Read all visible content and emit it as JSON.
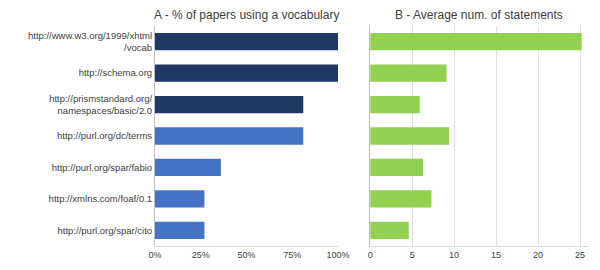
{
  "chart_data": [
    {
      "type": "bar",
      "orientation": "horizontal",
      "title": "A - % of papers using a vocabulary",
      "categories": [
        "http://www.w3.org/1999/xhtml\n/vocab",
        "http://schema.org",
        "http://prismstandard.org/\nnamespaces/basic/2.0",
        "http://purl.org/dc/terms",
        "http://purl.org/spar/fabio",
        "http://xmlns.com/foaf/0.1",
        "http://purl.org/spar/cito"
      ],
      "values": [
        100,
        100,
        81,
        81,
        36,
        27,
        27
      ],
      "colors": [
        "#1f3864",
        "#1f3864",
        "#1f3864",
        "#4472c4",
        "#4472c4",
        "#4472c4",
        "#4472c4"
      ],
      "xlim": [
        0,
        100
      ],
      "xticks": [
        {
          "value": 0,
          "label": "0%"
        },
        {
          "value": 25,
          "label": "25%"
        },
        {
          "value": 50,
          "label": "50%"
        },
        {
          "value": 75,
          "label": "75%"
        },
        {
          "value": 100,
          "label": "100%"
        }
      ],
      "grid": false
    },
    {
      "type": "bar",
      "orientation": "horizontal",
      "title": "B - Average num. of statements",
      "categories": [
        "http://www.w3.org/1999/xhtml\n/vocab",
        "http://schema.org",
        "http://prismstandard.org/\nnamespaces/basic/2.0",
        "http://purl.org/dc/terms",
        "http://purl.org/spar/fabio",
        "http://xmlns.com/foaf/0.1",
        "http://purl.org/spar/cito"
      ],
      "values": [
        25.2,
        9.1,
        5.9,
        9.4,
        6.3,
        7.3,
        4.6
      ],
      "color": "#92d050",
      "xlim": [
        0,
        26
      ],
      "xticks": [
        0,
        5,
        10,
        15,
        20,
        25
      ],
      "grid": true,
      "tick_labels": "x"
    }
  ]
}
